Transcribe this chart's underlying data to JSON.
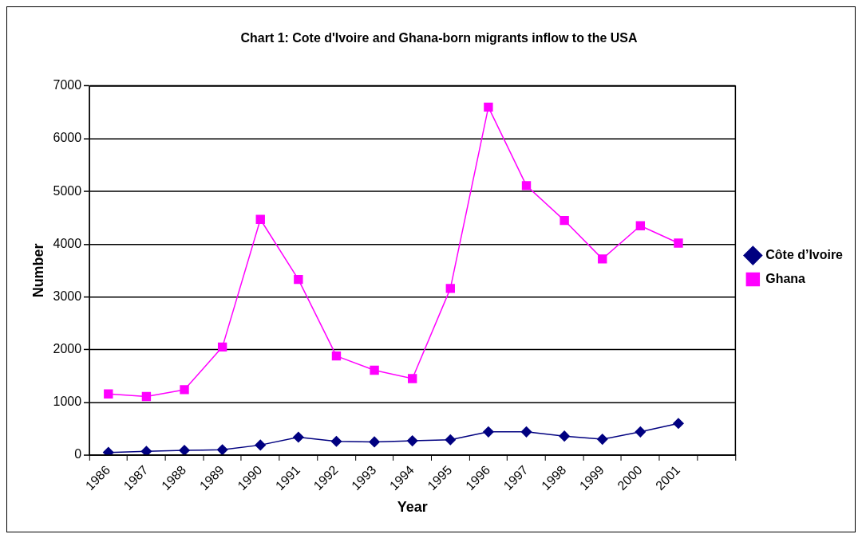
{
  "chart_data": {
    "type": "line",
    "title": "Chart 1: Cote d'Ivoire and Ghana-born migrants inflow to the USA",
    "xlabel": "Year",
    "ylabel": "Number",
    "categories": [
      "1986",
      "1987",
      "1988",
      "1989",
      "1990",
      "1991",
      "1992",
      "1993",
      "1994",
      "1995",
      "1996",
      "1997",
      "1998",
      "1999",
      "2000",
      "2001",
      null
    ],
    "series": [
      {
        "name": "Côte d’Ivoire",
        "color": "#000080",
        "marker": "diamond",
        "values": [
          50,
          70,
          90,
          100,
          190,
          340,
          260,
          250,
          270,
          290,
          440,
          440,
          360,
          300,
          440,
          600,
          null
        ]
      },
      {
        "name": "Ghana",
        "color": "#ff00ff",
        "marker": "square",
        "values": [
          1160,
          1110,
          1240,
          2050,
          4470,
          3330,
          1880,
          1610,
          1450,
          3160,
          6600,
          5110,
          4450,
          3720,
          4350,
          4020,
          null
        ]
      }
    ],
    "ylim": [
      0,
      7000
    ],
    "yticks": [
      0,
      1000,
      2000,
      3000,
      4000,
      5000,
      6000,
      7000
    ],
    "grid": "y",
    "legend": "right"
  }
}
